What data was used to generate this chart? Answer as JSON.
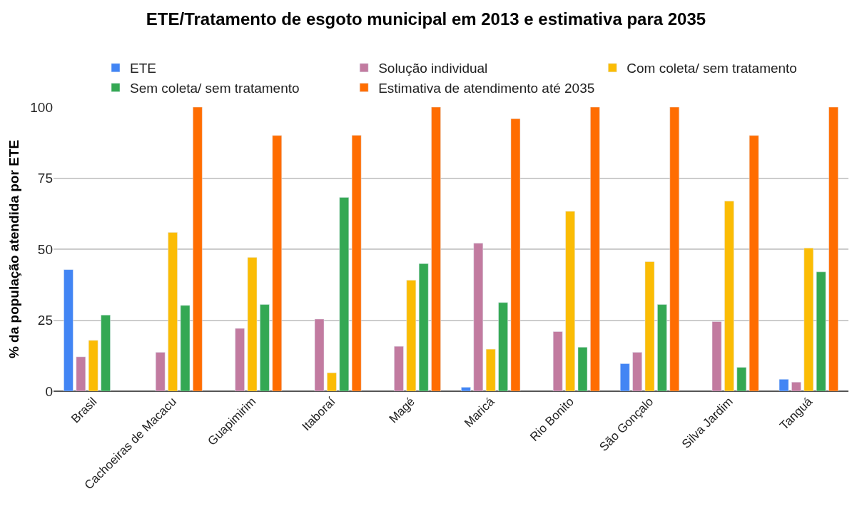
{
  "chart_data": {
    "type": "bar",
    "title": "ETE/Tratamento de esgoto municipal em 2013 e estimativa para 2035",
    "ylabel": "% da população atendida por ETE",
    "categories": [
      "Brasil",
      "Cachoeiras de Macacu",
      "Guapimirim",
      "Itaboraí",
      "Magé",
      "Maricá",
      "Rio Bonito",
      "São Gonçalo",
      "Silva Jardim",
      "Tanguá"
    ],
    "series": [
      {
        "name": "ETE",
        "color": "#4285f4",
        "values": [
          42.8,
          null,
          null,
          null,
          null,
          1.4,
          null,
          9.7,
          null,
          4.2
        ]
      },
      {
        "name": "Solução individual",
        "color": "#c27ba0",
        "values": [
          12.1,
          13.7,
          22.1,
          25.4,
          15.8,
          52.1,
          21.0,
          13.7,
          24.5,
          3.2
        ]
      },
      {
        "name": "Com coleta/ sem tratamento",
        "color": "#fbbc04",
        "values": [
          17.9,
          55.9,
          47.1,
          6.5,
          39.1,
          14.8,
          63.3,
          45.6,
          66.9,
          50.4
        ]
      },
      {
        "name": "Sem coleta/ sem tratamento",
        "color": "#34a853",
        "values": [
          26.8,
          30.2,
          30.5,
          68.2,
          44.9,
          31.2,
          15.5,
          30.5,
          8.4,
          42.0
        ]
      },
      {
        "name": "Estimativa de atendimento até 2035",
        "color": "#ff6d01",
        "values": [
          null,
          100,
          90.0,
          90.1,
          100,
          95.9,
          100,
          100,
          90.0,
          100
        ]
      }
    ],
    "ylim": [
      0,
      100
    ],
    "yticks": [
      0,
      25,
      50,
      75,
      100
    ],
    "grid": "y",
    "legend": "top"
  }
}
